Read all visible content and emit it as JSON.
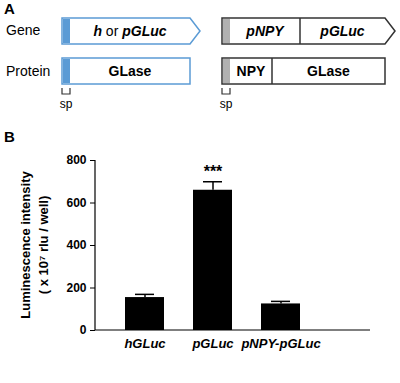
{
  "panels": [
    "A",
    "B"
  ],
  "diagram": {
    "rows": [
      "Gene",
      "Protein"
    ],
    "constructs": [
      {
        "gene": [
          "h or pGLuc"
        ],
        "protein": [
          "GLase"
        ],
        "signal_peptide": "sp"
      },
      {
        "gene": [
          "pNPY",
          "pGLuc"
        ],
        "protein": [
          "NPY",
          "GLase"
        ],
        "signal_peptide": "sp"
      }
    ]
  },
  "chart_data": {
    "type": "bar",
    "categories": [
      "hGLuc",
      "pGLuc",
      "pNPY-pGLuc"
    ],
    "values": [
      155,
      660,
      125
    ],
    "error": [
      15,
      40,
      12
    ],
    "color": "#000000",
    "ylabel": [
      "Luminescence intensity",
      "( x 10⁷ rlu / well)"
    ],
    "ylim": [
      0,
      800
    ],
    "yticks": [
      0,
      200,
      400,
      600,
      800
    ],
    "grid": false,
    "annotations": [
      {
        "category": "pGLuc",
        "text": "***"
      }
    ]
  }
}
